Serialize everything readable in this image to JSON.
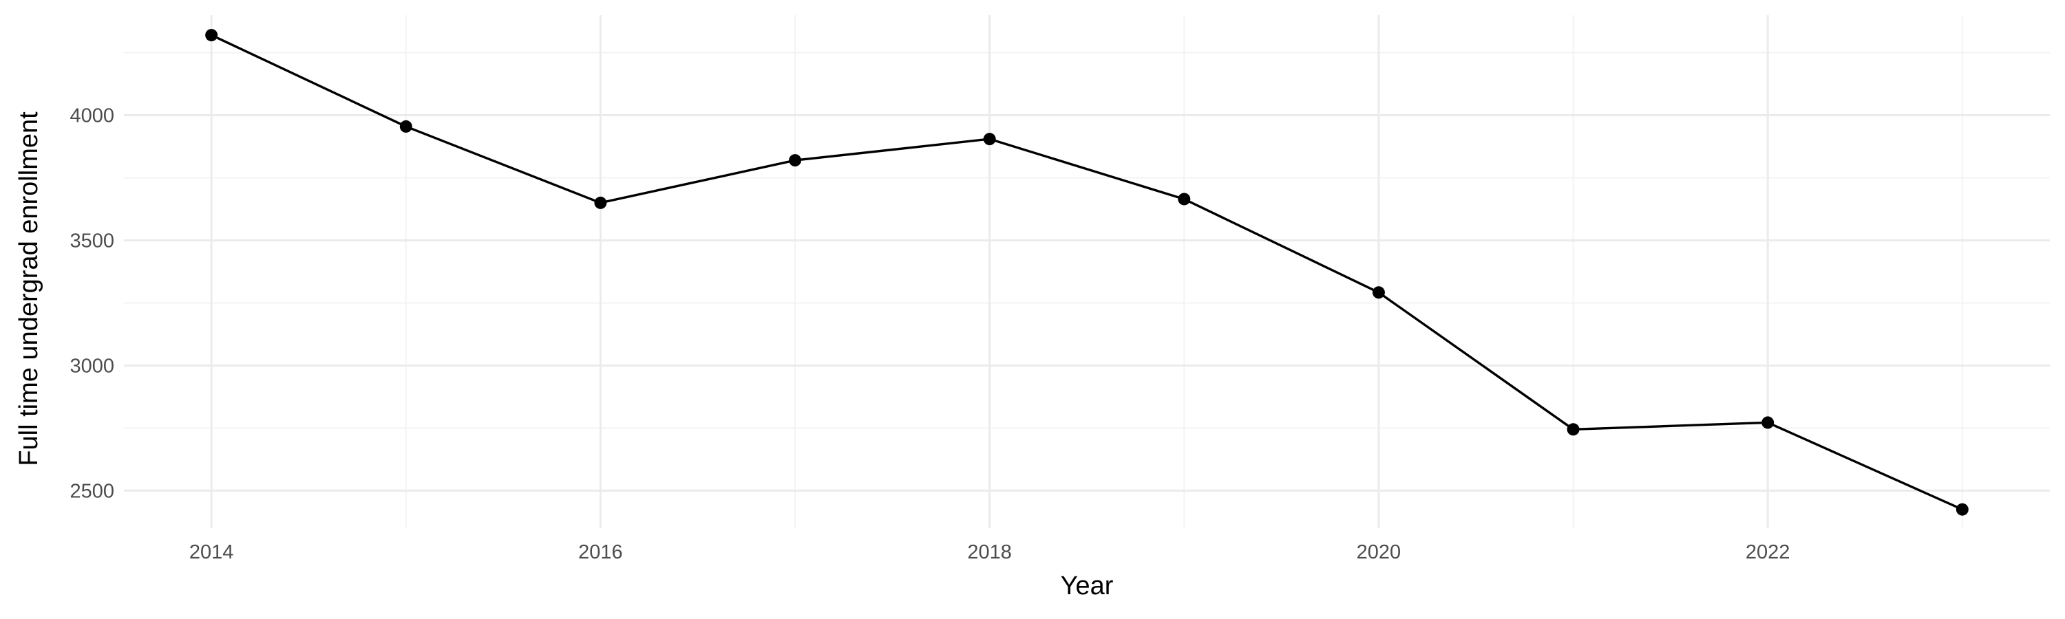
{
  "chart_data": {
    "type": "line",
    "title": "",
    "xlabel": "Year",
    "ylabel": "Full time undergrad enrollment",
    "x": [
      2014,
      2015,
      2016,
      2017,
      2018,
      2019,
      2020,
      2021,
      2022,
      2023
    ],
    "series": [
      {
        "values": [
          4320,
          3955,
          3650,
          3820,
          3905,
          3665,
          3292,
          2745,
          2772,
          2425
        ],
        "color": "#000000"
      }
    ],
    "xlim": [
      2013.55,
      2023.45
    ],
    "ylim": [
      2350,
      4400
    ],
    "x_ticks": [
      2014,
      2016,
      2018,
      2020,
      2022
    ],
    "x_tick_labels": [
      "2014",
      "2016",
      "2018",
      "2020",
      "2022"
    ],
    "y_ticks": [
      2500,
      3000,
      3500,
      4000
    ],
    "y_tick_labels": [
      "2500",
      "3000",
      "3500",
      "4000"
    ],
    "x_minor_ticks": [
      2015,
      2017,
      2019,
      2021,
      2023
    ],
    "y_minor_ticks": [
      2750,
      3250,
      3750,
      4250
    ],
    "grid": true,
    "legend": "none",
    "markers": true
  }
}
